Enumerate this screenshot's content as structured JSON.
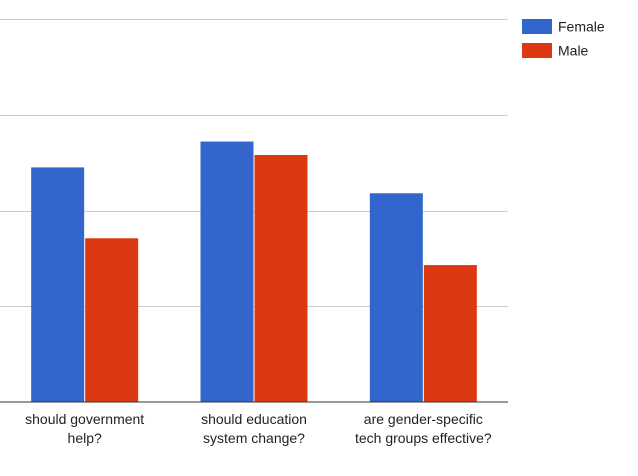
{
  "chart_data": {
    "type": "bar",
    "title": "",
    "xlabel": "",
    "ylabel": "",
    "categories": [
      [
        "should government",
        "help?"
      ],
      [
        "should education",
        "system change?"
      ],
      [
        "are gender-specific",
        "tech groups effective?"
      ]
    ],
    "series": [
      {
        "name": "Female",
        "color": "#3366cc",
        "values": [
          2.45,
          2.72,
          2.18
        ]
      },
      {
        "name": "Male",
        "color": "#dc3912",
        "values": [
          1.71,
          2.58,
          1.43
        ]
      }
    ],
    "ylim": [
      0,
      4
    ],
    "gridlines": [
      0,
      1,
      2,
      3,
      4
    ],
    "grid": true,
    "legend": "top-right"
  }
}
